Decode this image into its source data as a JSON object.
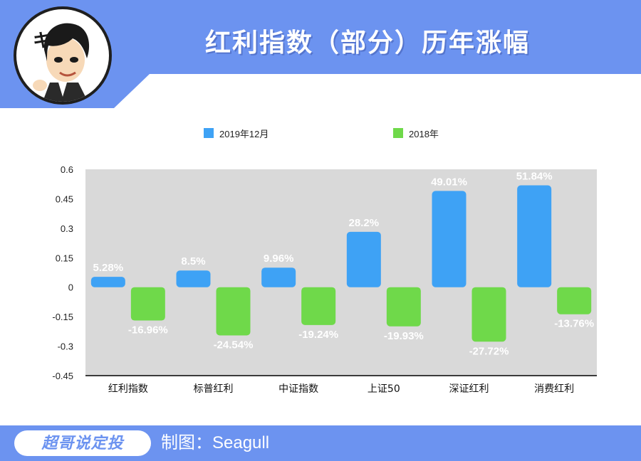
{
  "header": {
    "title": "红利指数（部分）历年涨幅",
    "bg_color": "#6c93f0"
  },
  "footer": {
    "brand": "超哥说定投",
    "credit": "制图：Seagull"
  },
  "chart_data": {
    "type": "bar",
    "title": "红利指数（部分）历年涨幅",
    "xlabel": "",
    "ylabel": "",
    "categories": [
      "红利指数",
      "标普红利",
      "中证指数",
      "上证50",
      "深证红利",
      "消费红利"
    ],
    "series": [
      {
        "name": "2019年12月",
        "color": "#3ea2f5",
        "values": [
          0.0528,
          0.085,
          0.0996,
          0.282,
          0.4901,
          0.5184
        ],
        "labels": [
          "5.28%",
          "8.5%",
          "9.96%",
          "28.2%",
          "49.01%",
          "51.84%"
        ]
      },
      {
        "name": "2018年",
        "color": "#6fd94a",
        "values": [
          -0.1696,
          -0.2454,
          -0.1924,
          -0.1993,
          -0.2772,
          -0.1376
        ],
        "labels": [
          "-16.96%",
          "-24.54%",
          "-19.24%",
          "-19.93%",
          "-27.72%",
          "-13.76%"
        ]
      }
    ],
    "ylim": [
      -0.45,
      0.6
    ],
    "yticks": [
      "0.6",
      "0.45",
      "0.3",
      "0.15",
      "0",
      "-0.15",
      "-0.3",
      "-0.45"
    ],
    "ytick_values": [
      0.6,
      0.45,
      0.3,
      0.15,
      0,
      -0.15,
      -0.3,
      -0.45
    ],
    "grid": false,
    "legend": "top",
    "plot_bg": "#d9d9d9"
  }
}
